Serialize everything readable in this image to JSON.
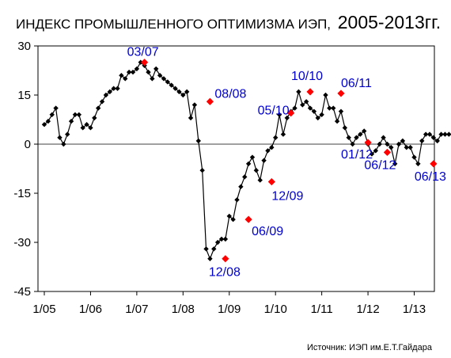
{
  "chart_data": {
    "type": "line",
    "title": "ИНДЕКС ПРОМЫШЛЕННОГО ОПТИМИЗМА ИЭП,",
    "title_years": "2005-2013гг.",
    "source": "Источник: ИЭП им.Е.Т.Гайдара",
    "ylim": [
      -45,
      30
    ],
    "yticks": [
      30,
      15,
      0,
      -15,
      -30,
      -45
    ],
    "xlim": [
      0,
      106
    ],
    "xticks": [
      {
        "label": "1/05",
        "x": 0
      },
      {
        "label": "1/06",
        "x": 12
      },
      {
        "label": "1/07",
        "x": 24
      },
      {
        "label": "1/08",
        "x": 36
      },
      {
        "label": "1/09",
        "x": 48
      },
      {
        "label": "1/10",
        "x": 60
      },
      {
        "label": "1/11",
        "x": 72
      },
      {
        "label": "1/12",
        "x": 84
      },
      {
        "label": "1/13",
        "x": 96
      }
    ],
    "grid": false,
    "series": [
      {
        "values": [
          6,
          7,
          9,
          11,
          2,
          0,
          3,
          7,
          9,
          9,
          5,
          6,
          5,
          8,
          11,
          13,
          15,
          16,
          17,
          17,
          21,
          20,
          22,
          22,
          23,
          25,
          24,
          22,
          20,
          23,
          21,
          20,
          19,
          18,
          17,
          16,
          15,
          16,
          8,
          12,
          1,
          -8,
          -32,
          -35,
          -32,
          -30,
          -29,
          -29,
          -22,
          -23,
          -17,
          -13,
          -10,
          -6,
          -4,
          -8,
          -11,
          -5,
          -2,
          -1,
          2,
          9,
          3,
          8,
          10,
          11,
          16,
          12,
          13,
          11,
          10,
          8,
          9,
          15,
          11,
          11,
          7,
          10,
          5,
          2,
          0,
          2,
          3,
          4,
          0,
          -3,
          -2,
          0,
          2,
          0,
          -1,
          -6,
          0,
          1,
          -1,
          -1,
          -4,
          -6,
          1,
          3,
          3,
          2,
          1,
          3,
          3,
          3,
          3
        ],
        "color": "#000000"
      }
    ],
    "annotations": [
      {
        "label": "03/07",
        "x": 26,
        "y": 25
      },
      {
        "label": "08/08",
        "x": 43,
        "y": 13
      },
      {
        "label": "12/08",
        "x": 47,
        "y": -35
      },
      {
        "label": "06/09",
        "x": 53,
        "y": -23
      },
      {
        "label": "12/09",
        "x": 59,
        "y": -11.5
      },
      {
        "label": "05/10",
        "x": 64,
        "y": 9.5
      },
      {
        "label": "10/10",
        "x": 69,
        "y": 16
      },
      {
        "label": "06/11",
        "x": 77,
        "y": 15.5
      },
      {
        "label": "01/12",
        "x": 84,
        "y": 0.5
      },
      {
        "label": "06/12",
        "x": 89,
        "y": -2.5
      },
      {
        "label": "06/13",
        "x": 101,
        "y": -6
      }
    ],
    "highlight_color": "#ff0000",
    "annotation_color": "#0000cc"
  }
}
